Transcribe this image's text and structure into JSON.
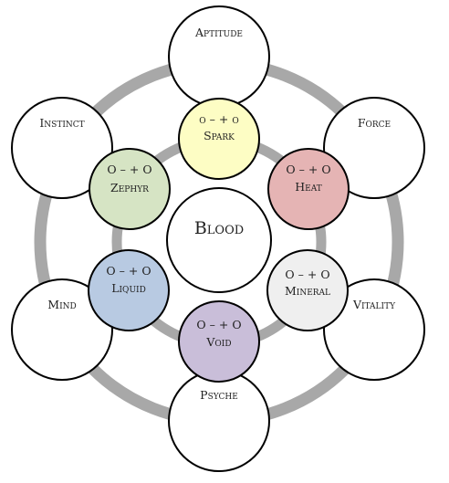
{
  "diagram": {
    "center": {
      "label": "Blood"
    },
    "inner_nodes": [
      {
        "id": "spark",
        "label": "Spark",
        "scale": "o – + o",
        "color": "#fdfdc4"
      },
      {
        "id": "heat",
        "label": "Heat",
        "scale": "O – + O",
        "color": "#e5b4b4"
      },
      {
        "id": "mineral",
        "label": "Mineral",
        "scale": "O – + O",
        "color": "#efefef"
      },
      {
        "id": "void",
        "label": "Void",
        "scale": "O – + O",
        "color": "#c9bed9"
      },
      {
        "id": "liquid",
        "label": "Liquid",
        "scale": "O – + O",
        "color": "#b8cae2"
      },
      {
        "id": "zephyr",
        "label": "Zephyr",
        "scale": "O – + O",
        "color": "#d6e4c4"
      }
    ],
    "outer_nodes": [
      {
        "id": "aptitude",
        "label": "Aptitude"
      },
      {
        "id": "force",
        "label": "Force"
      },
      {
        "id": "vitality",
        "label": "Vitality"
      },
      {
        "id": "psyche",
        "label": "Psyche"
      },
      {
        "id": "mind",
        "label": "Mind"
      },
      {
        "id": "instinct",
        "label": "Instinct"
      }
    ],
    "colors": {
      "ring": "#a8a8a8",
      "stroke": "#000000",
      "outer_fill": "#ffffff"
    }
  }
}
